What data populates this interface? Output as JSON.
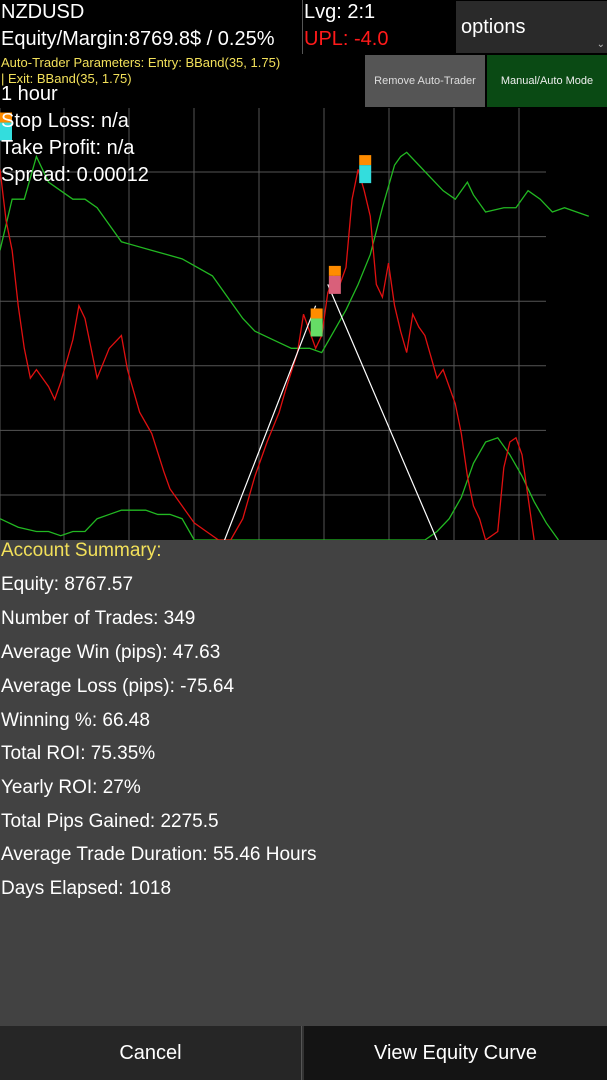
{
  "header": {
    "symbol": "NZDUSD",
    "equity_margin": "Equity/Margin:8769.8$ / 0.25%",
    "leverage": "Lvg: 2:1",
    "upl": "UPL: -4.0",
    "options_label": "options",
    "caret": "⌄"
  },
  "params": {
    "line1": "Auto-Trader Parameters: Entry: BBand(35, 1.75)",
    "line2": "| Exit: BBand(35, 1.75)"
  },
  "buttons": {
    "remove_auto_trader": "Remove Auto-Trader",
    "manual_auto_mode": "Manual/Auto Mode",
    "cancel": "Cancel",
    "view_equity_curve": "View Equity Curve"
  },
  "overlay": {
    "timeframe": "1 hour",
    "stop_loss": "Stop Loss: n/a",
    "take_profit": "Take Profit: n/a",
    "spread": "Spread: 0.00012"
  },
  "colors": {
    "price": "#e01010",
    "band": "#22b822",
    "grid": "#555555",
    "trade_line": "#ffffff",
    "marker_orange": "#ff8c00",
    "marker_green": "#66dd66",
    "marker_pink": "#d9607a",
    "marker_cyan": "#33dddd"
  },
  "chart_data": {
    "type": "line",
    "xlim": [
      0,
      100
    ],
    "ylim": [
      0,
      100
    ],
    "grid": true,
    "series": [
      {
        "values_xy": [
          [
            0,
            68
          ],
          [
            2,
            80
          ],
          [
            4,
            80
          ],
          [
            6,
            90
          ],
          [
            8,
            84
          ],
          [
            10,
            82
          ],
          [
            12,
            80
          ],
          [
            14,
            80
          ],
          [
            16,
            78
          ],
          [
            18,
            74
          ],
          [
            20,
            70
          ],
          [
            25,
            68
          ],
          [
            30,
            66
          ],
          [
            35,
            62
          ],
          [
            38,
            56
          ],
          [
            40,
            52
          ],
          [
            42,
            49
          ],
          [
            45,
            47
          ],
          [
            48,
            45
          ],
          [
            51,
            45
          ],
          [
            53,
            44
          ],
          [
            55,
            49
          ],
          [
            57,
            54
          ],
          [
            59,
            60
          ],
          [
            61,
            67
          ],
          [
            63,
            78
          ],
          [
            65,
            88
          ],
          [
            66,
            90
          ],
          [
            67,
            91
          ],
          [
            69,
            88
          ],
          [
            71,
            85
          ],
          [
            73,
            82
          ],
          [
            75,
            80
          ],
          [
            77,
            84
          ],
          [
            78,
            81
          ],
          [
            80,
            77
          ],
          [
            83,
            78
          ],
          [
            85,
            78
          ],
          [
            87,
            82
          ],
          [
            89,
            80
          ],
          [
            91,
            77
          ],
          [
            93,
            78
          ],
          [
            95,
            77
          ],
          [
            97,
            76
          ]
        ]
      },
      {
        "values_xy": [
          [
            0,
            5
          ],
          [
            3,
            3
          ],
          [
            6,
            2
          ],
          [
            8,
            2
          ],
          [
            10,
            1
          ],
          [
            12,
            2
          ],
          [
            14,
            2
          ],
          [
            16,
            5
          ],
          [
            18,
            6
          ],
          [
            20,
            7
          ],
          [
            22,
            7
          ],
          [
            24,
            7
          ],
          [
            26,
            6
          ],
          [
            28,
            6
          ],
          [
            30,
            5
          ],
          [
            32,
            0
          ],
          [
            70,
            0
          ],
          [
            72,
            2
          ],
          [
            74,
            5
          ],
          [
            76,
            10
          ],
          [
            78,
            18
          ],
          [
            80,
            23
          ],
          [
            82,
            24
          ],
          [
            84,
            20
          ],
          [
            86,
            15
          ],
          [
            88,
            9
          ],
          [
            90,
            4
          ],
          [
            92,
            0
          ]
        ]
      },
      {
        "values_xy": [
          [
            0,
            87
          ],
          [
            1,
            75
          ],
          [
            2,
            68
          ],
          [
            3,
            55
          ],
          [
            4,
            45
          ],
          [
            5,
            38
          ],
          [
            6,
            40
          ],
          [
            8,
            36
          ],
          [
            9,
            33
          ],
          [
            10,
            37
          ],
          [
            12,
            47
          ],
          [
            13,
            55
          ],
          [
            14,
            52
          ],
          [
            15,
            45
          ],
          [
            16,
            38
          ],
          [
            18,
            45
          ],
          [
            20,
            48
          ],
          [
            21,
            40
          ],
          [
            22,
            35
          ],
          [
            23,
            30
          ],
          [
            25,
            25
          ],
          [
            27,
            16
          ],
          [
            28,
            12
          ],
          [
            30,
            8
          ],
          [
            32,
            4
          ],
          [
            34,
            2
          ],
          [
            36,
            0
          ],
          [
            38,
            0
          ],
          [
            40,
            5
          ],
          [
            42,
            15
          ],
          [
            44,
            23
          ],
          [
            46,
            30
          ],
          [
            47,
            35
          ],
          [
            49,
            44
          ],
          [
            50,
            53
          ],
          [
            51,
            49
          ],
          [
            52,
            45
          ],
          [
            53,
            48
          ],
          [
            54,
            58
          ],
          [
            55,
            62
          ],
          [
            56,
            60
          ],
          [
            57,
            64
          ],
          [
            58,
            80
          ],
          [
            59,
            87
          ],
          [
            60,
            82
          ],
          [
            61,
            76
          ],
          [
            62,
            60
          ],
          [
            63,
            57
          ],
          [
            64,
            65
          ],
          [
            65,
            55
          ],
          [
            66,
            49
          ],
          [
            67,
            44
          ],
          [
            68,
            53
          ],
          [
            69,
            50
          ],
          [
            70,
            48
          ],
          [
            71,
            43
          ],
          [
            72,
            38
          ],
          [
            73,
            40
          ],
          [
            74,
            36
          ],
          [
            75,
            32
          ],
          [
            76,
            25
          ],
          [
            77,
            15
          ],
          [
            78,
            8
          ],
          [
            79,
            5
          ],
          [
            80,
            0
          ],
          [
            82,
            2
          ],
          [
            83,
            17
          ],
          [
            84,
            23
          ],
          [
            85,
            24
          ],
          [
            86,
            20
          ],
          [
            87,
            10
          ],
          [
            88,
            0
          ]
        ]
      }
    ],
    "trade_lines": [
      [
        [
          37,
          0
        ],
        [
          52,
          55
        ]
      ],
      [
        [
          54,
          60
        ],
        [
          72,
          0
        ]
      ]
    ],
    "markers": [
      {
        "x": 0,
        "y": 98,
        "top": "orange",
        "bottom": "cyan"
      },
      {
        "x": 52,
        "y": 52,
        "top": "orange",
        "bottom": "green"
      },
      {
        "x": 55,
        "y": 62,
        "top": "orange",
        "bottom": "pink"
      },
      {
        "x": 60,
        "y": 88,
        "top": "orange",
        "bottom": "cyan"
      }
    ]
  },
  "summary": {
    "title": "Account Summary:",
    "lines": [
      "Equity: 8767.57",
      "Number of Trades: 349",
      "Average Win (pips): 47.63",
      "Average Loss (pips): -75.64",
      "Winning %: 66.48",
      "Total ROI: 75.35%",
      "Yearly ROI: 27%",
      "Total Pips Gained: 2275.5",
      "Average Trade Duration: 55.46 Hours",
      "Days Elapsed: 1018"
    ]
  }
}
